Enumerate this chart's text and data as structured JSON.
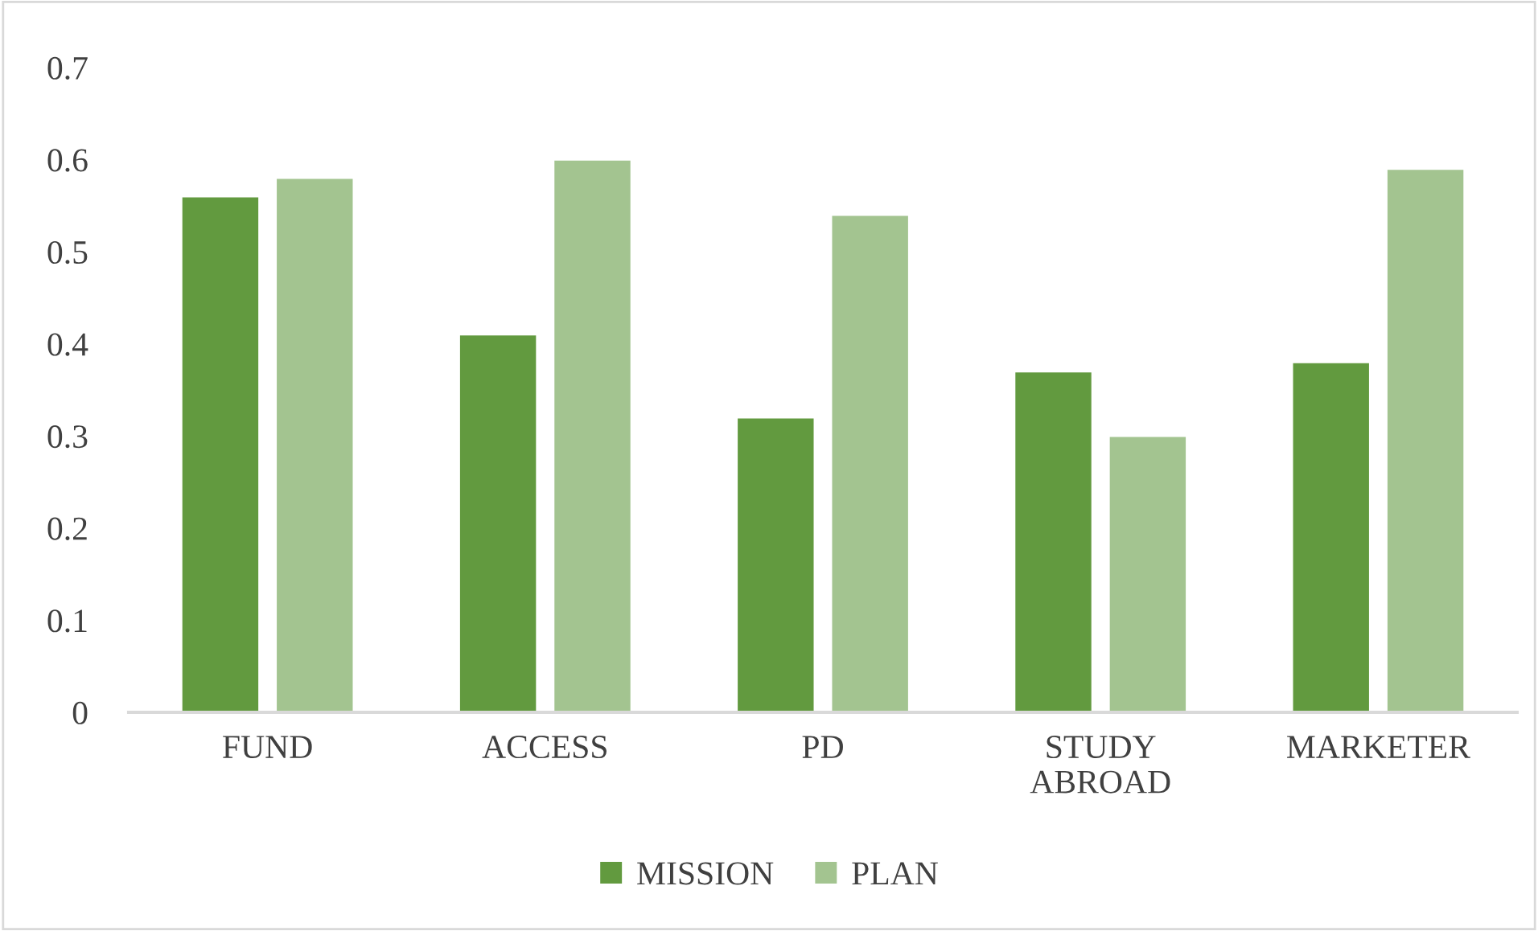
{
  "chart_data": {
    "type": "bar",
    "categories": [
      "FUND",
      "ACCESS",
      "PD",
      "STUDY\nABROAD",
      "MARKETER"
    ],
    "series": [
      {
        "name": "MISSION",
        "color": "#629a3f",
        "values": [
          0.56,
          0.41,
          0.32,
          0.37,
          0.38
        ]
      },
      {
        "name": "PLAN",
        "color": "#a3c490",
        "values": [
          0.58,
          0.6,
          0.54,
          0.3,
          0.59
        ]
      }
    ],
    "ylim": [
      0,
      0.7
    ],
    "yticks": [
      0,
      0.1,
      0.2,
      0.3,
      0.4,
      0.5,
      0.6,
      0.7
    ],
    "grid": false,
    "legend": "bottom"
  }
}
